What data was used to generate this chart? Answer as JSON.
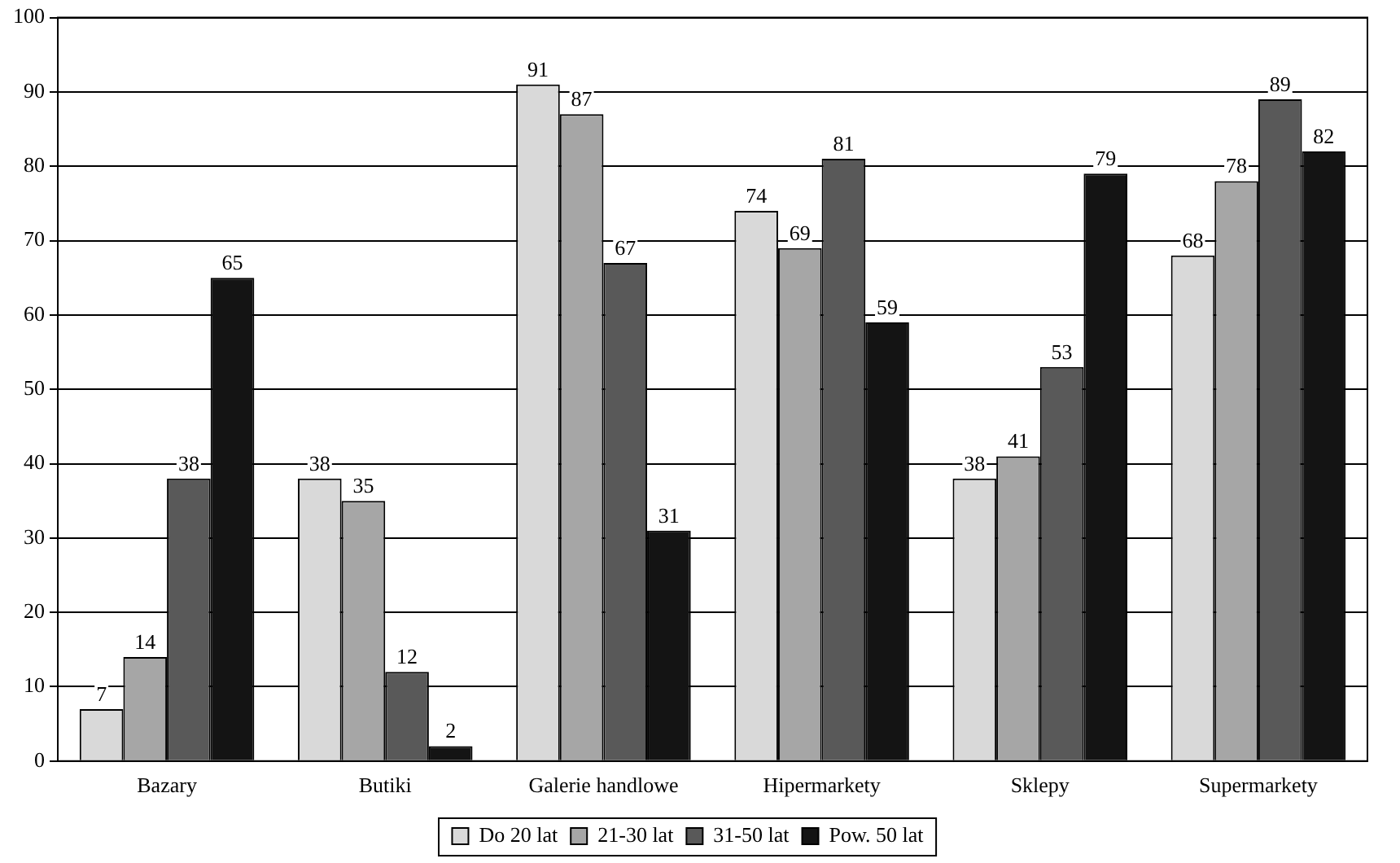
{
  "chart_data": {
    "type": "bar",
    "categories": [
      "Bazary",
      "Butiki",
      "Galerie handlowe",
      "Hipermarkety",
      "Sklepy",
      "Supermarkety"
    ],
    "series": [
      {
        "name": "Do 20 lat",
        "color": "#d9d9d9",
        "values": [
          7,
          38,
          91,
          74,
          38,
          68
        ]
      },
      {
        "name": "21-30 lat",
        "color": "#a6a6a6",
        "values": [
          14,
          35,
          87,
          69,
          41,
          78
        ]
      },
      {
        "name": "31-50 lat",
        "color": "#595959",
        "values": [
          38,
          12,
          67,
          81,
          53,
          89
        ]
      },
      {
        "name": "Pow. 50 lat",
        "color": "#141414",
        "values": [
          65,
          2,
          31,
          59,
          79,
          82
        ]
      }
    ],
    "ylim": [
      0,
      100
    ],
    "yticks": [
      0,
      10,
      20,
      30,
      40,
      50,
      60,
      70,
      80,
      90,
      100
    ],
    "grid": "y",
    "legend": "bottom",
    "data_labels": true
  }
}
